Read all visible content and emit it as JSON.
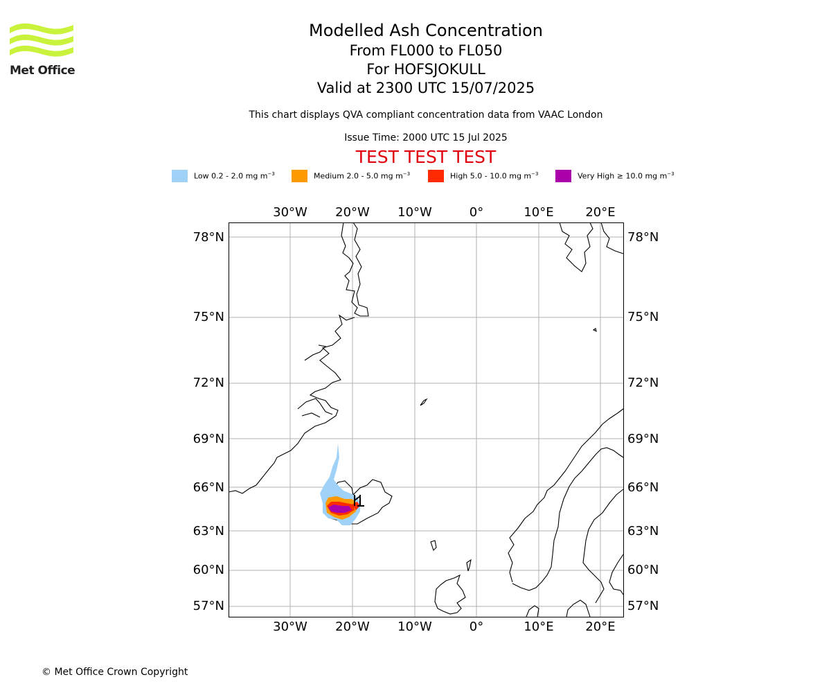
{
  "logo": {
    "text": "Met Office",
    "color": "#c8f23c"
  },
  "header": {
    "title": "Modelled Ash Concentration",
    "levels": "From FL000 to FL050",
    "volcano": "For HOFSJOKULL",
    "valid": "Valid at 2300 UTC 15/07/2025",
    "subtitle": "This chart displays QVA compliant concentration data from VAAC London",
    "issue_time": "Issue Time: 2000 UTC 15 Jul 2025",
    "test_banner": "TEST TEST TEST"
  },
  "legend": [
    {
      "label": "Low 0.2 - 2.0 mg m",
      "unit_exp": "−3",
      "color": "#a0d2f8"
    },
    {
      "label": "Medium 2.0 - 5.0 mg m",
      "unit_exp": "−3",
      "color": "#ff9900"
    },
    {
      "label": "High 5.0 - 10.0 mg m",
      "unit_exp": "−3",
      "color": "#ff2a00"
    },
    {
      "label": "Very High  ≥  10.0 mg m",
      "unit_exp": "−3",
      "color": "#aa00aa"
    }
  ],
  "map": {
    "lon_ticks": [
      "30°W",
      "20°W",
      "10°W",
      "0°",
      "10°E",
      "20°E"
    ],
    "lat_ticks": [
      "78°N",
      "75°N",
      "72°N",
      "69°N",
      "66°N",
      "63°N",
      "60°N",
      "57°N"
    ],
    "grid": true,
    "ash_location": "Iceland"
  },
  "footer": {
    "copyright": "© Met Office Crown Copyright"
  }
}
